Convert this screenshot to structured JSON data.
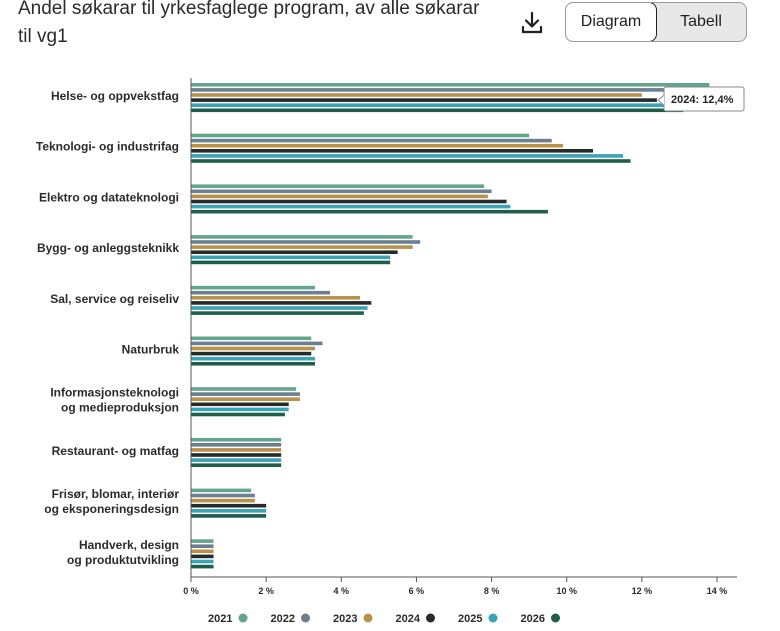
{
  "header": {
    "title": "Andel søkarar til yrkesfaglege program, av alle søkarar til vg1",
    "download_icon": "download-icon",
    "view_toggle": {
      "options": [
        "Diagram",
        "Tabell"
      ],
      "selected": "Diagram"
    }
  },
  "tooltip": {
    "text": "2024: 12,4%"
  },
  "colors": {
    "2021": "#63a58b",
    "2022": "#6c7f91",
    "2023": "#b8914a",
    "2024": "#262a2a",
    "2025": "#3aa3b4",
    "2026": "#215e4a"
  },
  "chart_data": {
    "type": "bar",
    "orientation": "horizontal",
    "title": "Andel søkarar til yrkesfaglege program, av alle søkarar til vg1",
    "categories": [
      "Helse- og oppvekstfag",
      "Teknologi- og industrifag",
      "Elektro og datateknologi",
      "Bygg- og anleggsteknikk",
      "Sal, service og reiseliv",
      "Naturbruk",
      "Informasjonsteknologi og medieproduksjon",
      "Restaurant- og matfag",
      "Frisør, blomar, interiør og eksponeringsdesign",
      "Handverk, design og produktutvikling"
    ],
    "series": [
      {
        "name": "2021",
        "values": [
          13.8,
          9.0,
          7.8,
          5.9,
          3.3,
          3.2,
          2.8,
          2.4,
          1.6,
          0.6
        ]
      },
      {
        "name": "2022",
        "values": [
          12.9,
          9.6,
          8.0,
          6.1,
          3.7,
          3.5,
          2.9,
          2.4,
          1.7,
          0.6
        ]
      },
      {
        "name": "2023",
        "values": [
          12.0,
          9.9,
          7.9,
          5.9,
          4.5,
          3.3,
          2.9,
          2.4,
          1.7,
          0.6
        ]
      },
      {
        "name": "2024",
        "values": [
          12.4,
          10.7,
          8.4,
          5.5,
          4.8,
          3.2,
          2.6,
          2.4,
          2.0,
          0.6
        ]
      },
      {
        "name": "2025",
        "values": [
          12.8,
          11.5,
          8.5,
          5.3,
          4.7,
          3.3,
          2.6,
          2.4,
          2.0,
          0.6
        ]
      },
      {
        "name": "2026",
        "values": [
          13.1,
          11.7,
          9.5,
          5.3,
          4.6,
          3.3,
          2.5,
          2.4,
          2.0,
          0.6
        ]
      }
    ],
    "xlim": [
      0,
      14
    ],
    "xticks": [
      "0 %",
      "2 %",
      "4 %",
      "6 %",
      "8 %",
      "10 %",
      "12 %",
      "14 %"
    ],
    "xlabel": "",
    "ylabel": "",
    "legend": "bottom",
    "grid": false
  }
}
